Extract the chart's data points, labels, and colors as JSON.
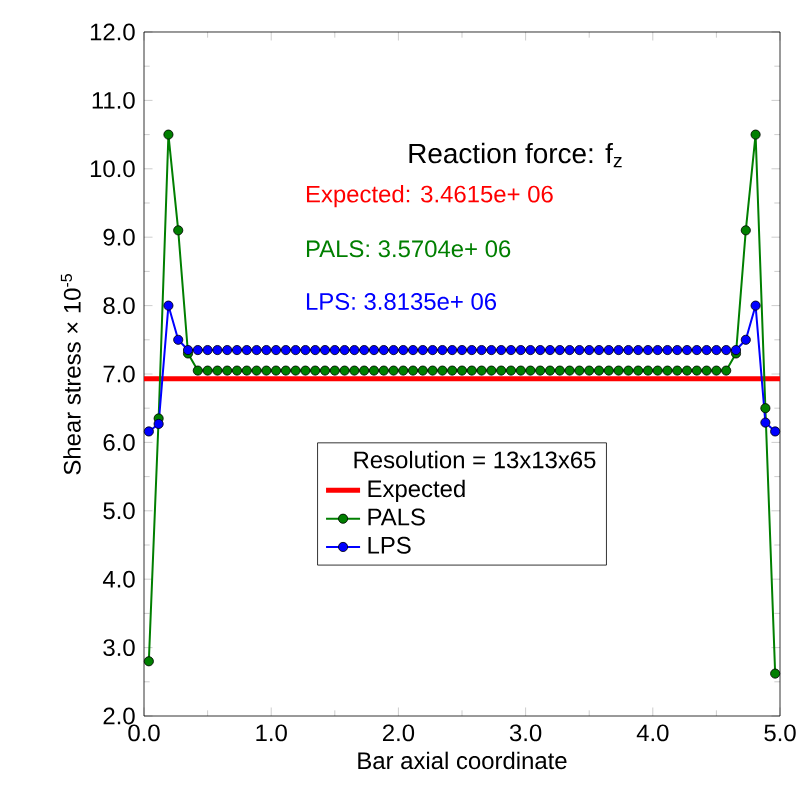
{
  "chart_data": {
    "type": "line",
    "xlabel": "Bar axial coordinate",
    "ylabel": "Shear stress  ×  10$^{-5}$",
    "legend_title": "Resolution =  13x13x65",
    "annotations": [
      "Reaction force: f$_{z}$",
      "Expected: 3.4615e+ 06",
      "PALS: 3.5704e+ 06",
      "LPS: 3.8135e+ 06"
    ],
    "x": [
      0.038,
      0.115,
      0.192,
      0.269,
      0.346,
      0.423,
      0.5,
      0.577,
      0.654,
      0.731,
      0.808,
      0.885,
      0.962,
      1.038,
      1.115,
      1.192,
      1.269,
      1.346,
      1.423,
      1.5,
      1.577,
      1.654,
      1.731,
      1.808,
      1.885,
      1.962,
      2.038,
      2.115,
      2.192,
      2.269,
      2.346,
      2.423,
      2.5,
      2.577,
      2.654,
      2.731,
      2.808,
      2.885,
      2.962,
      3.038,
      3.115,
      3.192,
      3.269,
      3.346,
      3.423,
      3.5,
      3.577,
      3.654,
      3.731,
      3.808,
      3.885,
      3.962,
      4.038,
      4.115,
      4.192,
      4.269,
      4.346,
      4.423,
      4.5,
      4.577,
      4.654,
      4.731,
      4.808,
      4.885,
      4.962
    ],
    "series": [
      {
        "name": "Expected",
        "color": "#ff0000",
        "marker": "none",
        "x": [
          0,
          5
        ],
        "values": [
          6.93,
          6.93
        ]
      },
      {
        "name": "PALS",
        "color": "#007f00",
        "values": [
          2.8,
          6.35,
          10.5,
          9.1,
          7.3,
          7.05,
          7.05,
          7.05,
          7.05,
          7.05,
          7.05,
          7.05,
          7.05,
          7.05,
          7.05,
          7.05,
          7.05,
          7.05,
          7.05,
          7.05,
          7.05,
          7.05,
          7.05,
          7.05,
          7.05,
          7.05,
          7.05,
          7.05,
          7.05,
          7.05,
          7.05,
          7.05,
          7.05,
          7.05,
          7.05,
          7.05,
          7.05,
          7.05,
          7.05,
          7.05,
          7.05,
          7.05,
          7.05,
          7.05,
          7.05,
          7.05,
          7.05,
          7.05,
          7.05,
          7.05,
          7.05,
          7.05,
          7.05,
          7.05,
          7.05,
          7.05,
          7.05,
          7.05,
          7.05,
          7.05,
          7.3,
          9.1,
          10.5,
          6.5,
          2.62
        ]
      },
      {
        "name": "LPS",
        "color": "#0000ff",
        "values": [
          6.16,
          6.27,
          8.0,
          7.5,
          7.35,
          7.35,
          7.35,
          7.35,
          7.35,
          7.35,
          7.35,
          7.35,
          7.35,
          7.35,
          7.35,
          7.35,
          7.35,
          7.35,
          7.35,
          7.35,
          7.35,
          7.35,
          7.35,
          7.35,
          7.35,
          7.35,
          7.35,
          7.35,
          7.35,
          7.35,
          7.35,
          7.35,
          7.35,
          7.35,
          7.35,
          7.35,
          7.35,
          7.35,
          7.35,
          7.35,
          7.35,
          7.35,
          7.35,
          7.35,
          7.35,
          7.35,
          7.35,
          7.35,
          7.35,
          7.35,
          7.35,
          7.35,
          7.35,
          7.35,
          7.35,
          7.35,
          7.35,
          7.35,
          7.35,
          7.35,
          7.35,
          7.5,
          8.0,
          6.29,
          6.16
        ]
      }
    ],
    "marker": "circle",
    "line_style": "solid",
    "legend": "center",
    "grid": false,
    "xlim": [
      0,
      5
    ],
    "ylim": [
      2,
      12
    ],
    "xticks": [
      {
        "value": 0,
        "label": "0.0"
      },
      {
        "value": 1,
        "label": "1.0"
      },
      {
        "value": 2,
        "label": "2.0"
      },
      {
        "value": 3,
        "label": "3.0"
      },
      {
        "value": 4,
        "label": "4.0"
      },
      {
        "value": 5,
        "label": "5.0"
      }
    ],
    "yticks": [
      {
        "value": 2,
        "label": "2.0"
      },
      {
        "value": 3,
        "label": "3.0"
      },
      {
        "value": 4,
        "label": "4.0"
      },
      {
        "value": 5,
        "label": "5.0"
      },
      {
        "value": 6,
        "label": "6.0"
      },
      {
        "value": 7,
        "label": "7.0"
      },
      {
        "value": 8,
        "label": "8.0"
      },
      {
        "value": 9,
        "label": "9.0"
      },
      {
        "value": 10,
        "label": "10.0"
      },
      {
        "value": 11,
        "label": "11.0"
      },
      {
        "value": 12,
        "label": "12.0"
      }
    ]
  }
}
